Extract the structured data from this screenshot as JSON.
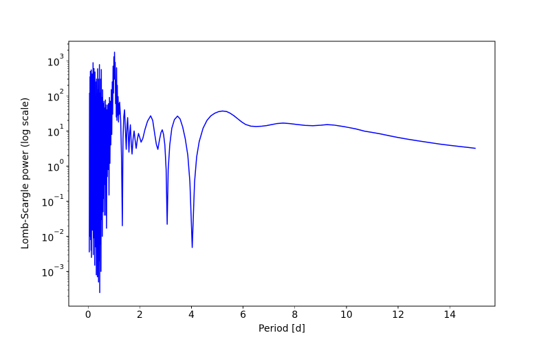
{
  "chart_data": {
    "type": "line",
    "title": "",
    "xlabel": "Period [d]",
    "ylabel": "Lomb-Scargle power (log scale)",
    "yscale": "log",
    "grid": false,
    "legend": null,
    "xlim": [
      -0.75,
      15.75
    ],
    "ylim_log10": [
      -3.99,
      3.555
    ],
    "x_tick_values": [
      0,
      2,
      4,
      6,
      8,
      10,
      12,
      14
    ],
    "x_tick_labels": [
      "0",
      "2",
      "4",
      "6",
      "8",
      "10",
      "12",
      "14"
    ],
    "y_tick_exponents": [
      3,
      2,
      1,
      0,
      -1,
      -2,
      -3
    ],
    "line_color": "#0000ff",
    "line_width": 1.5,
    "series": [
      {
        "name": "Lomb-Scargle power",
        "points": [
          [
            0.045,
            0.0035
          ],
          [
            0.055,
            120
          ],
          [
            0.063,
            0.01
          ],
          [
            0.072,
            350
          ],
          [
            0.08,
            0.02
          ],
          [
            0.088,
            500
          ],
          [
            0.096,
            0.008
          ],
          [
            0.105,
            430
          ],
          [
            0.113,
            0.004
          ],
          [
            0.122,
            550
          ],
          [
            0.13,
            0.0025
          ],
          [
            0.139,
            300
          ],
          [
            0.147,
            0.04
          ],
          [
            0.156,
            420
          ],
          [
            0.164,
            0.015
          ],
          [
            0.173,
            160
          ],
          [
            0.182,
            0.05
          ],
          [
            0.191,
            880
          ],
          [
            0.2,
            0.003
          ],
          [
            0.209,
            420
          ],
          [
            0.218,
            0.06
          ],
          [
            0.227,
            600
          ],
          [
            0.236,
            0.009
          ],
          [
            0.246,
            200
          ],
          [
            0.255,
            0.0015
          ],
          [
            0.265,
            480
          ],
          [
            0.275,
            0.03
          ],
          [
            0.285,
            250
          ],
          [
            0.295,
            0.005
          ],
          [
            0.306,
            90
          ],
          [
            0.316,
            0.0008
          ],
          [
            0.327,
            300
          ],
          [
            0.337,
            0.02
          ],
          [
            0.348,
            120
          ],
          [
            0.359,
            0.0007
          ],
          [
            0.37,
            590
          ],
          [
            0.381,
            0.004
          ],
          [
            0.392,
            150
          ],
          [
            0.403,
            0.0005
          ],
          [
            0.415,
            300
          ],
          [
            0.426,
            0.002
          ],
          [
            0.438,
            780
          ],
          [
            0.45,
            0.00025
          ],
          [
            0.462,
            120
          ],
          [
            0.474,
            0.006
          ],
          [
            0.486,
            300
          ],
          [
            0.498,
            0.001
          ],
          [
            0.51,
            560
          ],
          [
            0.523,
            0.03
          ],
          [
            0.536,
            90
          ],
          [
            0.549,
            0.01
          ],
          [
            0.562,
            150
          ],
          [
            0.575,
            0.05
          ],
          [
            0.588,
            60
          ],
          [
            0.601,
            0.12
          ],
          [
            0.614,
            70
          ],
          [
            0.628,
            0.04
          ],
          [
            0.642,
            45
          ],
          [
            0.656,
            0.3
          ],
          [
            0.67,
            76
          ],
          [
            0.684,
            0.04
          ],
          [
            0.698,
            55
          ],
          [
            0.712,
            0.017
          ],
          [
            0.727,
            40
          ],
          [
            0.742,
            0.5
          ],
          [
            0.757,
            55
          ],
          [
            0.772,
            0.8
          ],
          [
            0.79,
            60
          ],
          [
            0.808,
            0.15
          ],
          [
            0.826,
            90
          ],
          [
            0.844,
            1.2
          ],
          [
            0.862,
            70
          ],
          [
            0.88,
            4
          ],
          [
            0.898,
            150
          ],
          [
            0.916,
            8
          ],
          [
            0.934,
            250
          ],
          [
            0.95,
            30
          ],
          [
            0.966,
            700
          ],
          [
            0.982,
            120
          ],
          [
            0.998,
            1300
          ],
          [
            1.014,
            300
          ],
          [
            1.022,
            1750
          ],
          [
            1.032,
            400
          ],
          [
            1.048,
            900
          ],
          [
            1.062,
            60
          ],
          [
            1.078,
            280
          ],
          [
            1.09,
            25
          ],
          [
            1.102,
            630
          ],
          [
            1.115,
            20
          ],
          [
            1.13,
            200
          ],
          [
            1.145,
            28
          ],
          [
            1.16,
            95
          ],
          [
            1.175,
            18
          ],
          [
            1.19,
            60
          ],
          [
            1.205,
            30
          ],
          [
            1.22,
            66
          ],
          [
            1.26,
            20
          ],
          [
            1.295,
            1.5
          ],
          [
            1.325,
            0.02
          ],
          [
            1.35,
            6
          ],
          [
            1.38,
            25
          ],
          [
            1.41,
            40
          ],
          [
            1.445,
            10
          ],
          [
            1.475,
            3
          ],
          [
            1.505,
            14
          ],
          [
            1.53,
            24
          ],
          [
            1.555,
            8
          ],
          [
            1.58,
            2.5
          ],
          [
            1.61,
            9
          ],
          [
            1.635,
            15
          ],
          [
            1.665,
            5
          ],
          [
            1.7,
            2.2
          ],
          [
            1.74,
            6
          ],
          [
            1.78,
            10
          ],
          [
            1.82,
            5.5
          ],
          [
            1.86,
            3.2
          ],
          [
            1.91,
            6
          ],
          [
            1.95,
            8.5
          ],
          [
            2.0,
            6.5
          ],
          [
            2.05,
            4.8
          ],
          [
            2.12,
            6.2
          ],
          [
            2.2,
            11
          ],
          [
            2.3,
            19
          ],
          [
            2.42,
            27
          ],
          [
            2.5,
            20
          ],
          [
            2.58,
            8
          ],
          [
            2.64,
            4.2
          ],
          [
            2.7,
            3.0
          ],
          [
            2.76,
            5.5
          ],
          [
            2.82,
            9
          ],
          [
            2.87,
            10.8
          ],
          [
            2.92,
            8
          ],
          [
            2.97,
            4
          ],
          [
            3.02,
            0.8
          ],
          [
            3.06,
            0.022
          ],
          [
            3.1,
            0.8
          ],
          [
            3.16,
            4
          ],
          [
            3.24,
            12
          ],
          [
            3.34,
            21
          ],
          [
            3.46,
            26.5
          ],
          [
            3.56,
            22
          ],
          [
            3.66,
            13
          ],
          [
            3.76,
            6
          ],
          [
            3.86,
            2
          ],
          [
            3.94,
            0.35
          ],
          [
            4.0,
            0.02
          ],
          [
            4.03,
            0.0048
          ],
          [
            4.06,
            0.02
          ],
          [
            4.12,
            0.35
          ],
          [
            4.2,
            1.8
          ],
          [
            4.3,
            5
          ],
          [
            4.45,
            12
          ],
          [
            4.6,
            20
          ],
          [
            4.75,
            27
          ],
          [
            4.9,
            32
          ],
          [
            5.05,
            35.5
          ],
          [
            5.2,
            37
          ],
          [
            5.35,
            36
          ],
          [
            5.5,
            32
          ],
          [
            5.65,
            27
          ],
          [
            5.8,
            22
          ],
          [
            5.95,
            18
          ],
          [
            6.1,
            15.3
          ],
          [
            6.3,
            13.7
          ],
          [
            6.5,
            13.4
          ],
          [
            6.7,
            13.6
          ],
          [
            6.9,
            14.2
          ],
          [
            7.1,
            15.2
          ],
          [
            7.3,
            16.2
          ],
          [
            7.55,
            16.8
          ],
          [
            7.8,
            16.2
          ],
          [
            8.1,
            15.3
          ],
          [
            8.4,
            14.4
          ],
          [
            8.7,
            14.1
          ],
          [
            9.0,
            14.6
          ],
          [
            9.25,
            15.2
          ],
          [
            9.5,
            14.8
          ],
          [
            9.7,
            14.0
          ],
          [
            9.9,
            13.3
          ],
          [
            10.1,
            12.5
          ],
          [
            10.35,
            11.5
          ],
          [
            10.7,
            9.9
          ],
          [
            11.0,
            9.1
          ],
          [
            11.3,
            8.3
          ],
          [
            11.7,
            7.2
          ],
          [
            12.0,
            6.5
          ],
          [
            12.4,
            5.8
          ],
          [
            12.8,
            5.2
          ],
          [
            13.2,
            4.7
          ],
          [
            13.6,
            4.25
          ],
          [
            14.0,
            3.9
          ],
          [
            14.4,
            3.6
          ],
          [
            14.7,
            3.4
          ],
          [
            15.0,
            3.2
          ]
        ]
      }
    ]
  }
}
